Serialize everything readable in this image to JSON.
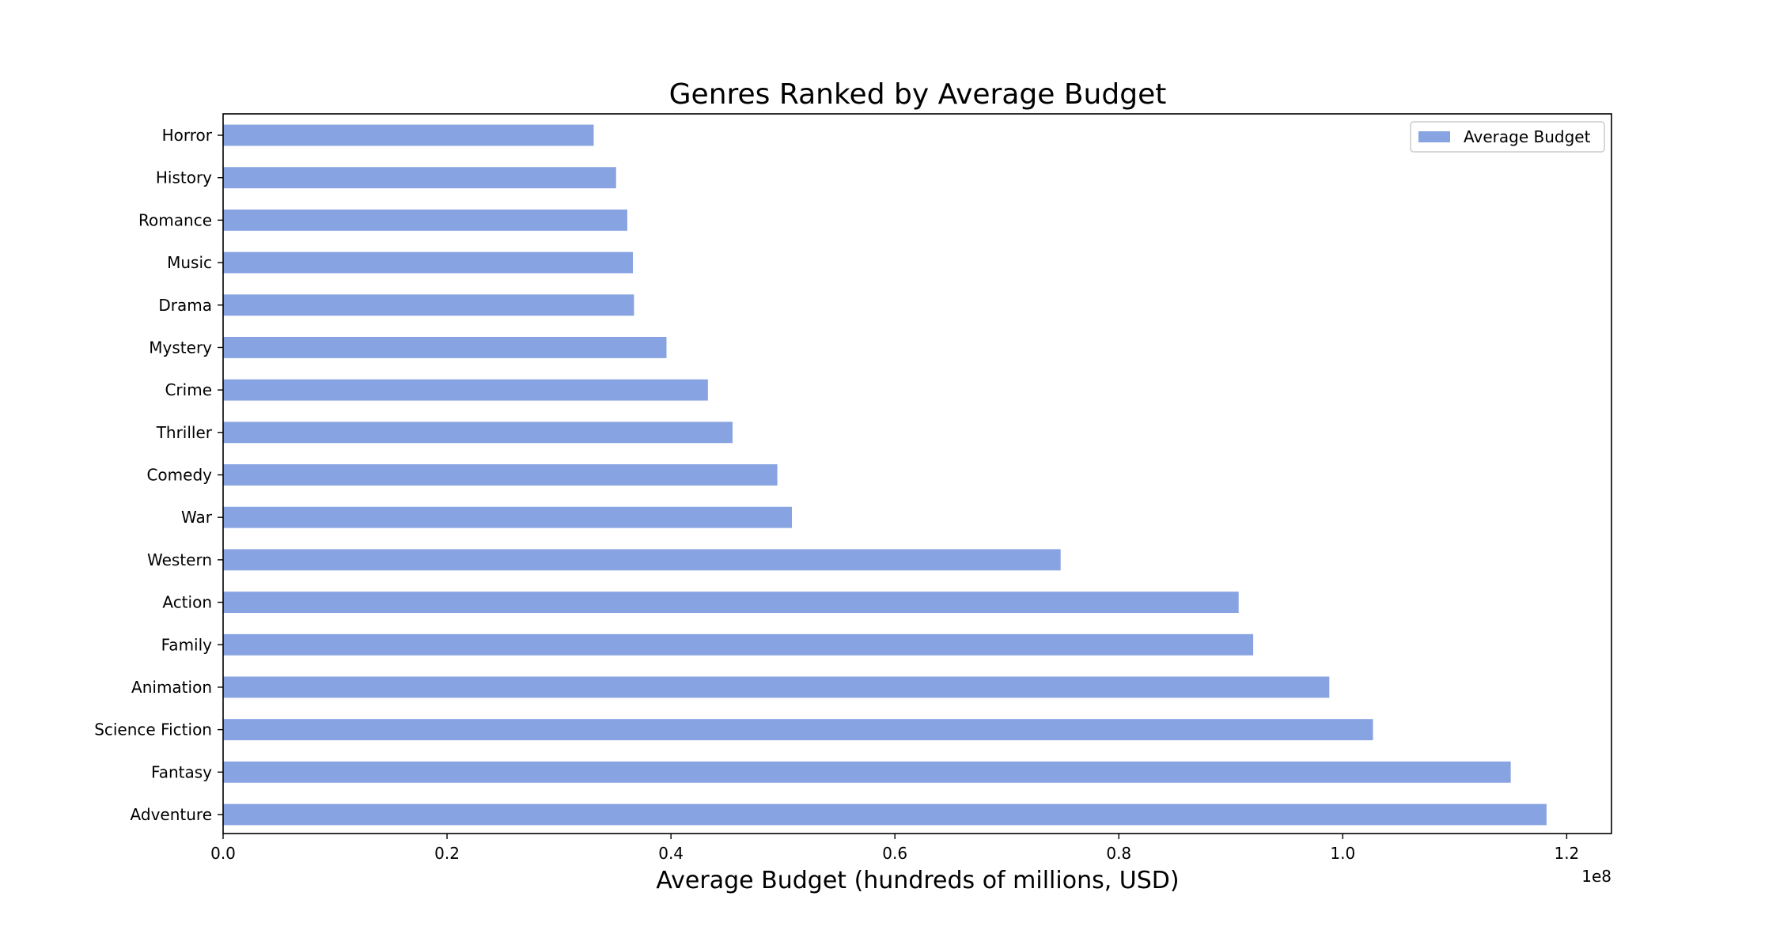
{
  "chart_data": {
    "type": "bar",
    "orientation": "horizontal",
    "title": "Genres Ranked by Average Budget",
    "xlabel": "Average Budget (hundreds of millions, USD)",
    "ylabel": "",
    "x_offset_text": "1e8",
    "xlim": [
      0,
      124000000
    ],
    "xticks": [
      0,
      20000000,
      40000000,
      60000000,
      80000000,
      100000000,
      120000000
    ],
    "xtick_labels": [
      "0.0",
      "0.2",
      "0.4",
      "0.6",
      "0.8",
      "1.0",
      "1.2"
    ],
    "categories": [
      "Adventure",
      "Fantasy",
      "Science Fiction",
      "Animation",
      "Family",
      "Action",
      "Western",
      "War",
      "Comedy",
      "Thriller",
      "Crime",
      "Mystery",
      "Drama",
      "Music",
      "Romance",
      "History",
      "Horror"
    ],
    "series": [
      {
        "name": "Average Budget",
        "color": "#87a3e1",
        "values": [
          118200000,
          115000000,
          102700000,
          98800000,
          92000000,
          90700000,
          74800000,
          50800000,
          49500000,
          45500000,
          43300000,
          39600000,
          36700000,
          36600000,
          36100000,
          35100000,
          33100000
        ]
      }
    ],
    "legend_position": "top-right",
    "grid": false
  }
}
